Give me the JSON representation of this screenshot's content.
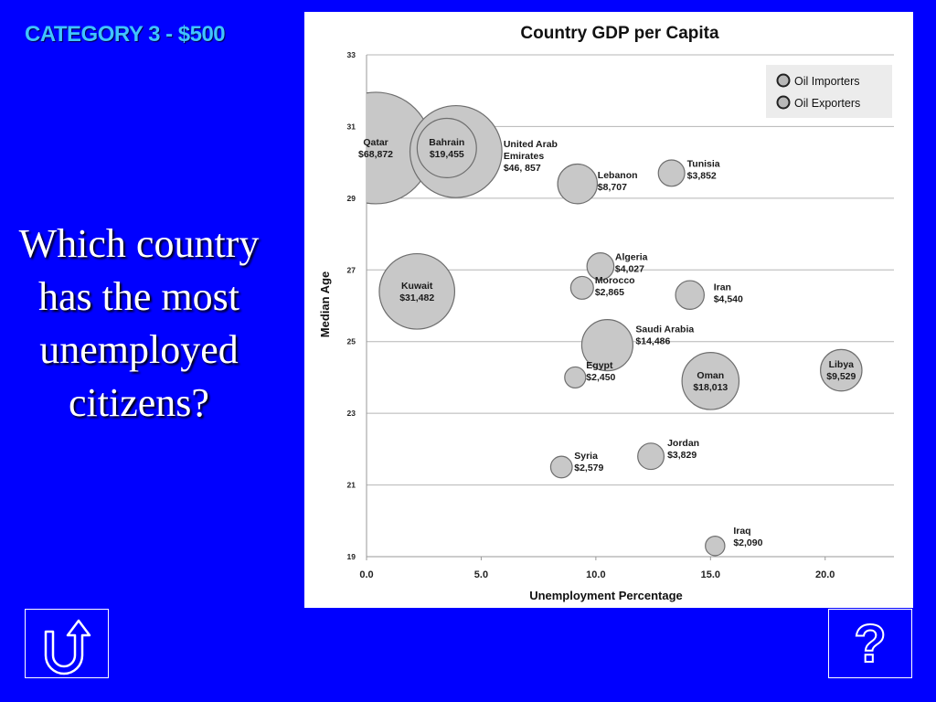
{
  "slide": {
    "category": "CATEGORY 3 - $500",
    "question_lines": [
      "Which country",
      "has the most",
      "unemployed",
      "citizens?"
    ],
    "background_color": "#0000ff",
    "category_color": "#40c4ff"
  },
  "nav": {
    "back_icon": "return-u-arrow-icon",
    "help_icon": "question-mark-icon",
    "help_glyph": "?"
  },
  "chart_data": {
    "type": "scatter",
    "title": "Country GDP per Capita",
    "xlabel": "Unemployment Percentage",
    "ylabel": "Median Age",
    "xlim": [
      0,
      23
    ],
    "ylim": [
      19,
      33
    ],
    "x_ticks": [
      "0.0",
      "5.0",
      "10.0",
      "15.0",
      "20.0"
    ],
    "x_tick_values": [
      0,
      5,
      10,
      15,
      20
    ],
    "y_ticks": [
      "19",
      "21",
      "23",
      "25",
      "27",
      "29",
      "31",
      "33"
    ],
    "y_tick_values": [
      19,
      21,
      23,
      25,
      27,
      29,
      31,
      33
    ],
    "grid": "horizontal",
    "legend": [
      "Oil Importers",
      "Oil Exporters"
    ],
    "legend_position": "top-right",
    "bubble_color": "#c8c8c8",
    "bubble_size": "GDP per capita",
    "points": [
      {
        "name": "Qatar",
        "gdp": "$68,872",
        "x": 0.4,
        "y": 30.4,
        "size": 68872
      },
      {
        "name": "United Arab Emirates",
        "gdp": "$46, 857",
        "x": 3.9,
        "y": 30.3,
        "size": 46857
      },
      {
        "name": "Bahrain",
        "gdp": "$19,455",
        "x": 3.5,
        "y": 30.4,
        "size": 19455
      },
      {
        "name": "Lebanon",
        "gdp": "$8,707",
        "x": 9.2,
        "y": 29.4,
        "size": 8707
      },
      {
        "name": "Tunisia",
        "gdp": "$3,852",
        "x": 13.3,
        "y": 29.7,
        "size": 3852
      },
      {
        "name": "Kuwait",
        "gdp": "$31,482",
        "x": 2.2,
        "y": 26.4,
        "size": 31482
      },
      {
        "name": "Algeria",
        "gdp": "$4,027",
        "x": 10.2,
        "y": 27.1,
        "size": 4027
      },
      {
        "name": "Morocco",
        "gdp": "$2,865",
        "x": 9.4,
        "y": 26.5,
        "size": 2865
      },
      {
        "name": "Iran",
        "gdp": "$4,540",
        "x": 14.1,
        "y": 26.3,
        "size": 4540
      },
      {
        "name": "Saudi Arabia",
        "gdp": "$14,486",
        "x": 10.5,
        "y": 24.9,
        "size": 14486
      },
      {
        "name": "Egypt",
        "gdp": "$2,450",
        "x": 9.1,
        "y": 24.0,
        "size": 2450
      },
      {
        "name": "Oman",
        "gdp": "$18,013",
        "x": 15.0,
        "y": 23.9,
        "size": 18013
      },
      {
        "name": "Libya",
        "gdp": "$9,529",
        "x": 20.7,
        "y": 24.2,
        "size": 9529
      },
      {
        "name": "Jordan",
        "gdp": "$3,829",
        "x": 12.4,
        "y": 21.8,
        "size": 3829
      },
      {
        "name": "Syria",
        "gdp": "$2,579",
        "x": 8.5,
        "y": 21.5,
        "size": 2579
      },
      {
        "name": "Iraq",
        "gdp": "$2,090",
        "x": 15.2,
        "y": 19.3,
        "size": 2090
      }
    ]
  }
}
